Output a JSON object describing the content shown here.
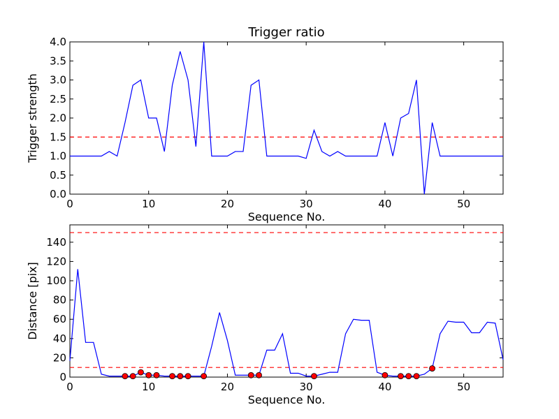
{
  "chart_data": [
    {
      "type": "line",
      "title": "Trigger ratio",
      "xlabel": "Sequence No.",
      "ylabel": "Trigger strength",
      "xlim": [
        0,
        55
      ],
      "ylim": [
        0,
        4
      ],
      "xticks": [
        0,
        10,
        20,
        30,
        40,
        50
      ],
      "yticks": [
        0.0,
        0.5,
        1.0,
        1.5,
        2.0,
        2.5,
        3.0,
        3.5,
        4.0
      ],
      "ytick_labels": [
        "0.0",
        "0.5",
        "1.0",
        "1.5",
        "2.0",
        "2.5",
        "3.0",
        "3.5",
        "4.0"
      ],
      "grid": false,
      "line_color": "#0000ff",
      "threshold_color": "#ff0000",
      "thresholds": [
        1.5
      ],
      "series": [
        {
          "x": [
            0,
            1,
            2,
            3,
            4,
            5,
            6,
            7,
            8,
            9,
            10,
            11,
            12,
            13,
            14,
            15,
            16,
            17,
            18,
            19,
            20,
            21,
            22,
            23,
            24,
            25,
            26,
            27,
            28,
            29,
            30,
            31,
            32,
            33,
            34,
            35,
            36,
            37,
            38,
            39,
            40,
            41,
            42,
            43,
            44,
            45,
            46,
            47,
            48,
            49,
            50,
            51,
            52,
            53,
            54,
            55
          ],
          "y": [
            1.0,
            1.0,
            1.0,
            1.0,
            1.0,
            1.12,
            1.0,
            1.88,
            2.86,
            3.0,
            2.0,
            2.0,
            1.12,
            2.86,
            3.75,
            3.0,
            1.25,
            4.0,
            1.0,
            1.0,
            1.0,
            1.12,
            1.12,
            2.86,
            3.0,
            1.0,
            1.0,
            1.0,
            1.0,
            1.0,
            0.94,
            1.68,
            1.12,
            1.0,
            1.12,
            1.0,
            1.0,
            1.0,
            1.0,
            1.0,
            1.88,
            1.0,
            2.0,
            2.12,
            3.0,
            0.0,
            1.88,
            1.0,
            1.0,
            1.0,
            1.0,
            1.0,
            1.0,
            1.0,
            1.0,
            1.0
          ]
        }
      ]
    },
    {
      "type": "line",
      "title": "",
      "xlabel": "Sequence No.",
      "ylabel": "Distance [pix]",
      "xlim": [
        0,
        55
      ],
      "ylim": [
        0,
        158
      ],
      "xticks": [
        0,
        10,
        20,
        30,
        40,
        50
      ],
      "yticks": [
        0,
        20,
        40,
        60,
        80,
        100,
        120,
        140
      ],
      "ytick_labels": [
        "0",
        "20",
        "40",
        "60",
        "80",
        "100",
        "120",
        "140"
      ],
      "grid": false,
      "line_color": "#0000ff",
      "threshold_color": "#ff0000",
      "marker_color": "#ff0000",
      "thresholds": [
        10,
        150
      ],
      "series": [
        {
          "x": [
            0,
            1,
            2,
            3,
            4,
            5,
            6,
            7,
            8,
            9,
            10,
            11,
            12,
            13,
            14,
            15,
            16,
            17,
            18,
            19,
            20,
            21,
            22,
            23,
            24,
            25,
            26,
            27,
            28,
            29,
            30,
            31,
            32,
            33,
            34,
            35,
            36,
            37,
            38,
            39,
            40,
            41,
            42,
            43,
            44,
            45,
            46,
            47,
            48,
            49,
            50,
            51,
            52,
            53,
            54,
            55
          ],
          "y": [
            17,
            112,
            36,
            36,
            3,
            1,
            1,
            1,
            1,
            5,
            2,
            2,
            1,
            1,
            1,
            1,
            1,
            1,
            32,
            67,
            38,
            2,
            2,
            2,
            2,
            28,
            28,
            45,
            4,
            4,
            1,
            1,
            3,
            5,
            5,
            45,
            60,
            59,
            59,
            5,
            2,
            1,
            1,
            1,
            1,
            3,
            9,
            45,
            58,
            57,
            57,
            46,
            46,
            57,
            56,
            18
          ]
        }
      ],
      "markers": {
        "x": [
          7,
          8,
          9,
          10,
          11,
          13,
          14,
          15,
          17,
          23,
          24,
          31,
          40,
          42,
          43,
          44,
          46
        ],
        "y": [
          1,
          1,
          5,
          2,
          2,
          1,
          1,
          1,
          1,
          2,
          2,
          1,
          2,
          1,
          1,
          1,
          9
        ]
      }
    }
  ]
}
